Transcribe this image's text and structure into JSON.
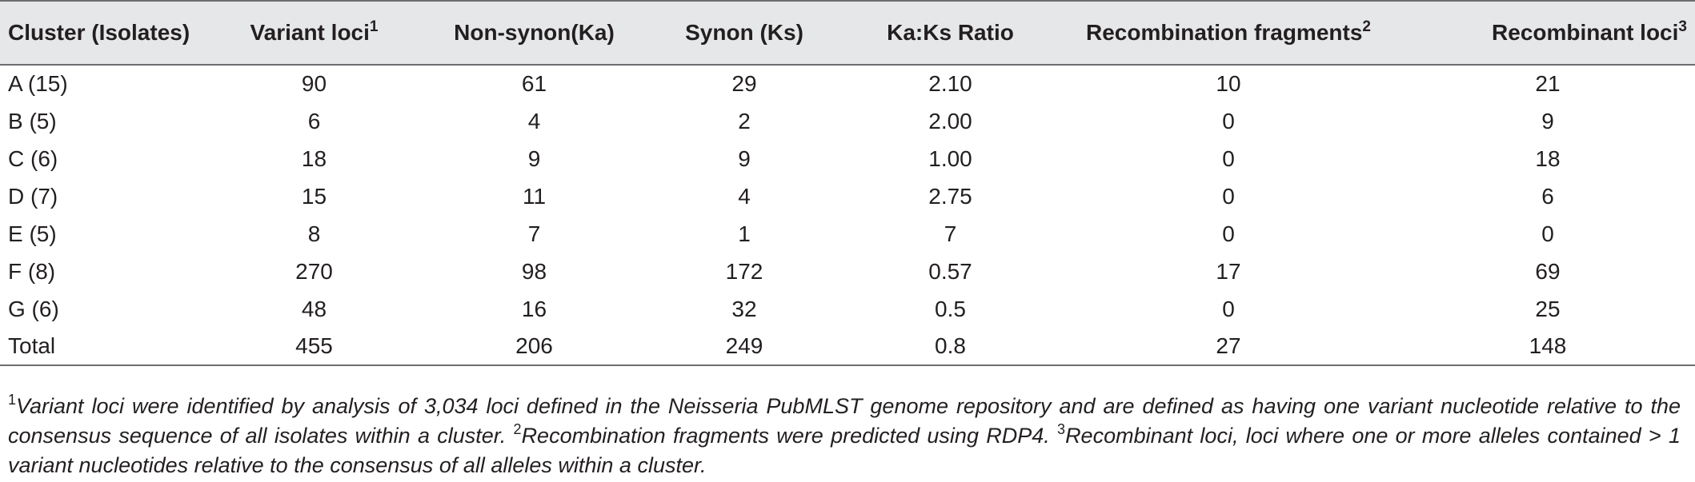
{
  "table": {
    "headers": [
      {
        "text": "Cluster (Isolates)",
        "sup": ""
      },
      {
        "text": "Variant loci",
        "sup": "1"
      },
      {
        "text": "Non-synon(Ka)",
        "sup": ""
      },
      {
        "text": "Synon (Ks)",
        "sup": ""
      },
      {
        "text": "Ka:Ks Ratio",
        "sup": ""
      },
      {
        "text": "Recombination fragments",
        "sup": "2"
      },
      {
        "text": "Recombinant loci",
        "sup": "3"
      }
    ],
    "rows": [
      [
        "A (15)",
        "90",
        "61",
        "29",
        "2.10",
        "10",
        "21"
      ],
      [
        "B (5)",
        "6",
        "4",
        "2",
        "2.00",
        "0",
        "9"
      ],
      [
        "C (6)",
        "18",
        "9",
        "9",
        "1.00",
        "0",
        "18"
      ],
      [
        "D (7)",
        "15",
        "11",
        "4",
        "2.75",
        "0",
        "6"
      ],
      [
        "E (5)",
        "8",
        "7",
        "1",
        "7",
        "0",
        "0"
      ],
      [
        "F (8)",
        "270",
        "98",
        "172",
        "0.57",
        "17",
        "69"
      ],
      [
        "G (6)",
        "48",
        "16",
        "32",
        "0.5",
        "0",
        "25"
      ],
      [
        "Total",
        "455",
        "206",
        "249",
        "0.8",
        "27",
        "148"
      ]
    ]
  },
  "footnotes": [
    {
      "mark": "1",
      "text": "Variant loci were identified by analysis of 3,034 loci defined in the Neisseria PubMLST genome repository and are defined as having one variant nucleotide relative to the consensus sequence of all isolates within a cluster. "
    },
    {
      "mark": "2",
      "text": "Recombination fragments were predicted using RDP4. "
    },
    {
      "mark": "3",
      "text": "Recombinant loci, loci where one or more alleles contained > 1 variant nucleotides relative to the consensus of all alleles within a cluster."
    }
  ]
}
